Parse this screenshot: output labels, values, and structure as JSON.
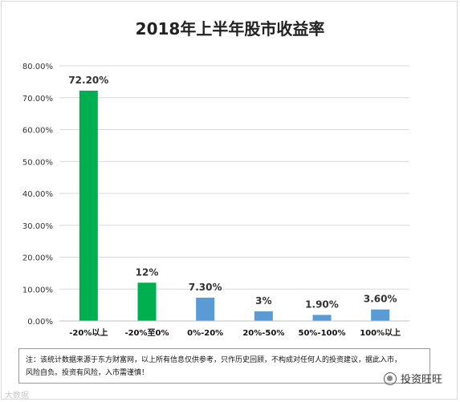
{
  "chart_data": {
    "type": "bar",
    "title": "2018年上半年股市收益率",
    "categories": [
      "-20%以上",
      "-20%至0%",
      "0%-20%",
      "20%-50%",
      "50%-100%",
      "100%以上"
    ],
    "values": [
      72.2,
      12,
      7.3,
      3,
      1.9,
      3.6
    ],
    "data_labels": [
      "72.20%",
      "12%",
      "7.30%",
      "3%",
      "1.90%",
      "3.60%"
    ],
    "bar_colors": [
      "#00b050",
      "#00b050",
      "#5b9bd5",
      "#5b9bd5",
      "#5b9bd5",
      "#5b9bd5"
    ],
    "yticks": [
      "0.00%",
      "10.00%",
      "20.00%",
      "30.00%",
      "40.00%",
      "50.00%",
      "60.00%",
      "70.00%",
      "80.00%"
    ],
    "ylim": [
      0,
      80
    ],
    "grid": true,
    "xlabel": "",
    "ylabel": ""
  },
  "note": {
    "line1": "注：该统计数据来源于东方财富网，以上所有信息仅供参考，只作历史回顾，不构成对任何人的投资建议，据此入市，",
    "line2": "风险自负。投资有风险，入市需谨慎！"
  },
  "watermark": {
    "left": "大数据",
    "right": "投资旺旺"
  }
}
